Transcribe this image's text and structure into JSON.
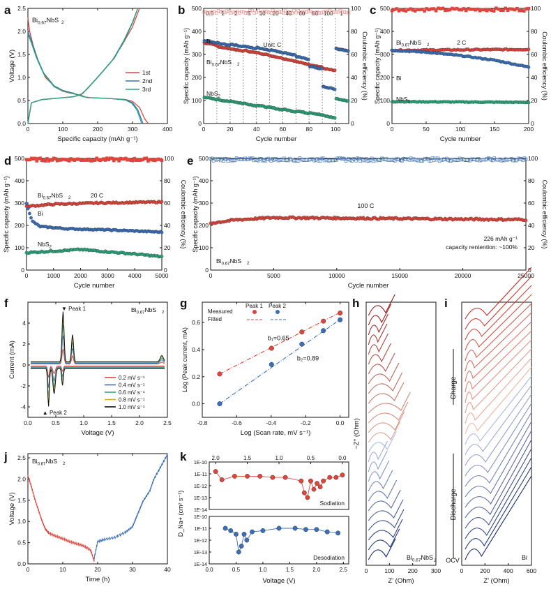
{
  "colors": {
    "red": "#e0453c",
    "blue": "#3a6fb7",
    "green": "#2aa57a",
    "black": "#111111",
    "yellow": "#d4b21f",
    "pink": "#e78d87"
  },
  "chart_data": [
    {
      "panel": "a",
      "type": "line",
      "annotation": "Bi0.67NbS2",
      "subscript": "0.67",
      "xlabel": "Specific capacity (mAh g⁻¹)",
      "ylabel": "Voltage (V)",
      "xlim": [
        0,
        400
      ],
      "ylim": [
        0,
        2.5
      ],
      "xticks": [
        0,
        100,
        200,
        300,
        400
      ],
      "yticks": [
        0,
        0.5,
        1.0,
        1.5,
        2.0,
        2.5
      ],
      "series": [
        {
          "name": "1st",
          "color": "red",
          "discharge": [
            [
              0,
              2.3
            ],
            [
              5,
              2.0
            ],
            [
              15,
              1.7
            ],
            [
              30,
              1.35
            ],
            [
              50,
              1.0
            ],
            [
              80,
              0.78
            ],
            [
              100,
              0.7
            ],
            [
              120,
              0.66
            ],
            [
              150,
              0.62
            ],
            [
              170,
              0.56
            ],
            [
              190,
              0.56
            ],
            [
              240,
              0.54
            ],
            [
              280,
              0.52
            ],
            [
              300,
              0.48
            ],
            [
              320,
              0.35
            ],
            [
              335,
              0.1
            ],
            [
              345,
              0
            ]
          ],
          "charge": [
            [
              0,
              0
            ],
            [
              10,
              0.45
            ],
            [
              40,
              0.52
            ],
            [
              100,
              0.56
            ],
            [
              130,
              0.58
            ],
            [
              150,
              0.62
            ],
            [
              170,
              0.75
            ],
            [
              200,
              1.0
            ],
            [
              240,
              1.35
            ],
            [
              270,
              1.7
            ],
            [
              300,
              2.1
            ],
            [
              320,
              2.5
            ]
          ]
        },
        {
          "name": "2nd",
          "color": "blue",
          "discharge": [
            [
              0,
              2.0
            ],
            [
              10,
              1.8
            ],
            [
              25,
              1.45
            ],
            [
              45,
              1.1
            ],
            [
              75,
              0.82
            ],
            [
              100,
              0.72
            ],
            [
              130,
              0.66
            ],
            [
              160,
              0.58
            ],
            [
              180,
              0.56
            ],
            [
              240,
              0.54
            ],
            [
              280,
              0.52
            ],
            [
              300,
              0.45
            ],
            [
              315,
              0.3
            ],
            [
              325,
              0.1
            ],
            [
              330,
              0
            ]
          ],
          "charge": [
            [
              0,
              0
            ],
            [
              10,
              0.45
            ],
            [
              40,
              0.52
            ],
            [
              100,
              0.56
            ],
            [
              130,
              0.58
            ],
            [
              155,
              0.64
            ],
            [
              175,
              0.8
            ],
            [
              205,
              1.05
            ],
            [
              245,
              1.4
            ],
            [
              275,
              1.8
            ],
            [
              300,
              2.2
            ],
            [
              315,
              2.5
            ]
          ]
        },
        {
          "name": "3rd",
          "color": "green",
          "discharge": [
            [
              0,
              1.95
            ],
            [
              10,
              1.75
            ],
            [
              25,
              1.42
            ],
            [
              45,
              1.08
            ],
            [
              75,
              0.8
            ],
            [
              100,
              0.71
            ],
            [
              130,
              0.65
            ],
            [
              160,
              0.58
            ],
            [
              180,
              0.56
            ],
            [
              240,
              0.54
            ],
            [
              280,
              0.51
            ],
            [
              298,
              0.44
            ],
            [
              312,
              0.3
            ],
            [
              322,
              0.1
            ],
            [
              326,
              0
            ]
          ],
          "charge": [
            [
              0,
              0
            ],
            [
              10,
              0.45
            ],
            [
              40,
              0.52
            ],
            [
              100,
              0.56
            ],
            [
              130,
              0.58
            ],
            [
              157,
              0.65
            ],
            [
              178,
              0.82
            ],
            [
              208,
              1.07
            ],
            [
              248,
              1.42
            ],
            [
              278,
              1.82
            ],
            [
              302,
              2.22
            ],
            [
              315,
              2.5
            ]
          ]
        }
      ]
    },
    {
      "panel": "b",
      "type": "scatter",
      "xlabel": "Cycle number",
      "ylabel": "Specific capacity (mAh g⁻¹)",
      "y2label": "Coulombic efficiency (%)",
      "xlim": [
        0,
        110
      ],
      "ylim": [
        0,
        500
      ],
      "y2lim": [
        0,
        100
      ],
      "xticks": [
        0,
        20,
        40,
        60,
        80,
        100
      ],
      "yticks": [
        0,
        100,
        200,
        300,
        400,
        500
      ],
      "y2ticks": [
        0,
        20,
        40,
        60,
        80,
        100
      ],
      "rates": [
        "0.5",
        "1",
        "2",
        "5",
        "10",
        "20",
        "40",
        "60",
        "80",
        "100",
        "1"
      ],
      "rate_unit": "Unit: C",
      "labels": [
        "Bi",
        "Bi0.67NbS2",
        "NbS2"
      ],
      "segments": {
        "Bi0_67NbS2": [
          350,
          335,
          325,
          318,
          308,
          295,
          282,
          268,
          256,
          240,
          325
        ],
        "Bi": [
          360,
          350,
          345,
          336,
          330,
          320,
          308,
          290,
          248,
          160,
          325
        ],
        "NbS2": [
          115,
          105,
          98,
          88,
          80,
          70,
          62,
          55,
          48,
          35,
          108
        ]
      },
      "ce_mean": 97
    },
    {
      "panel": "c",
      "type": "scatter",
      "xlabel": "Cycle number",
      "ylabel": "Specific capacity (mAh g⁻¹)",
      "y2label": "Coulombic efficiency (%)",
      "xlim": [
        0,
        200
      ],
      "ylim": [
        0,
        500
      ],
      "y2lim": [
        0,
        100
      ],
      "xticks": [
        0,
        50,
        100,
        150,
        200
      ],
      "yticks": [
        0,
        100,
        200,
        300,
        400,
        500
      ],
      "y2ticks": [
        0,
        20,
        40,
        60,
        80,
        100
      ],
      "rate": "2 C",
      "labels": [
        "Bi0.67NbS2",
        "Bi",
        "NbS2"
      ],
      "series": {
        "Bi0_67NbS2": [
          [
            0,
            318
          ],
          [
            200,
            322
          ]
        ],
        "Bi": [
          [
            0,
            318
          ],
          [
            50,
            310
          ],
          [
            100,
            295
          ],
          [
            150,
            275
          ],
          [
            200,
            245
          ]
        ],
        "NbS2": [
          [
            0,
            95
          ],
          [
            200,
            92
          ]
        ]
      },
      "ce_mean": 99
    },
    {
      "panel": "d",
      "type": "scatter",
      "xlabel": "Cycle number",
      "ylabel": "Specific capacity (mAh g⁻¹)",
      "y2label": "Coulombic efficiency (%)",
      "xlim": [
        0,
        5000
      ],
      "ylim": [
        0,
        500
      ],
      "y2lim": [
        0,
        100
      ],
      "xticks": [
        0,
        1000,
        2000,
        3000,
        4000,
        5000
      ],
      "yticks": [
        0,
        100,
        200,
        300,
        400,
        500
      ],
      "y2ticks": [
        0,
        20,
        40,
        60,
        80,
        100
      ],
      "rate": "20 C",
      "labels": [
        "Bi0.67NbS2",
        "Bi",
        "NbS2"
      ],
      "series": {
        "Bi0_67NbS2": [
          [
            0,
            285
          ],
          [
            1000,
            295
          ],
          [
            2500,
            300
          ],
          [
            5000,
            305
          ]
        ],
        "Bi": [
          [
            0,
            300
          ],
          [
            200,
            220
          ],
          [
            500,
            195
          ],
          [
            1500,
            185
          ],
          [
            3000,
            180
          ],
          [
            5000,
            170
          ]
        ],
        "NbS2": [
          [
            0,
            78
          ],
          [
            1000,
            85
          ],
          [
            2000,
            92
          ],
          [
            3000,
            82
          ],
          [
            4000,
            72
          ],
          [
            5000,
            60
          ]
        ]
      },
      "ce_mean": 99
    },
    {
      "panel": "e",
      "type": "scatter",
      "xlabel": "Cycle number",
      "ylabel": "Specific capacity (mAh g⁻¹)",
      "y2label": "Coulombic efficiency (%)",
      "xlim": [
        0,
        25000
      ],
      "ylim": [
        0,
        500
      ],
      "y2lim": [
        0,
        100
      ],
      "xticks": [
        0,
        5000,
        10000,
        15000,
        20000,
        25000
      ],
      "yticks": [
        0,
        100,
        200,
        300,
        400,
        500
      ],
      "y2ticks": [
        0,
        20,
        40,
        60,
        80,
        100
      ],
      "rate": "100 C",
      "sample": "Bi0.67NbS2",
      "note1": "226 mAh g⁻¹",
      "note2": "capacity rentention: ~100%",
      "series": {
        "Bi0_67NbS2": [
          [
            0,
            210
          ],
          [
            2000,
            225
          ],
          [
            5000,
            235
          ],
          [
            12000,
            232
          ],
          [
            20000,
            228
          ],
          [
            25000,
            226
          ]
        ]
      },
      "ce_mean": 99
    },
    {
      "panel": "f",
      "type": "line",
      "annotation": "Bi0.67NbS2",
      "xlabel": "Voltage (V)",
      "ylabel": "Current (mA)",
      "xlim": [
        0,
        2.5
      ],
      "ylim": [
        -5,
        6
      ],
      "xticks": [
        0,
        0.5,
        1.0,
        1.5,
        2.0,
        2.5
      ],
      "yticks": [
        -4,
        -2,
        0,
        2,
        4
      ],
      "peak1": "Peak 1",
      "peak2": "Peak 2",
      "legend": [
        {
          "label": "0.2 mV s⁻¹",
          "color": "red",
          "scale": 0.3
        },
        {
          "label": "0.4 mV s⁻¹",
          "color": "blue",
          "scale": 0.55
        },
        {
          "label": "0.6 mV s⁻¹",
          "color": "green",
          "scale": 0.75
        },
        {
          "label": "0.8 mV s⁻¹",
          "color": "yellow",
          "scale": 0.9
        },
        {
          "label": "1.0 mV s⁻¹",
          "color": "black",
          "scale": 1.0
        }
      ]
    },
    {
      "panel": "g",
      "type": "scatter",
      "xlabel": "Log (Scan rate, mV s⁻¹)",
      "ylabel": "Log (Peak current, mA)",
      "xlim": [
        -0.8,
        0.05
      ],
      "ylim": [
        -0.1,
        0.75
      ],
      "xticks": [
        -0.8,
        -0.6,
        -0.4,
        -0.2,
        0.0
      ],
      "yticks": [
        0.0,
        0.2,
        0.4,
        0.6
      ],
      "legend_measured": "Measured",
      "legend_fitted": "Fitted",
      "legend_p1": "Peak 1",
      "legend_p2": "Peak 2",
      "b1": "b₁=0.65",
      "b2": "b₂=0.89",
      "x": [
        -0.699,
        -0.398,
        -0.222,
        -0.097,
        0.0
      ],
      "peak1": [
        0.22,
        0.41,
        0.53,
        0.61,
        0.67
      ],
      "peak2": [
        0.0,
        0.29,
        0.44,
        0.54,
        0.62
      ]
    },
    {
      "panel": "h",
      "type": "line",
      "ylabel": "−Z'' (Ohm)",
      "xlabel": "Z' (Ohm)",
      "xlim": [
        0,
        300
      ],
      "xticks": [
        0,
        100,
        200,
        300
      ],
      "label": "Bi0.67NbS2",
      "n_curves": 26
    },
    {
      "panel": "i",
      "type": "line",
      "xlabel": "Z' (Ohm)",
      "xlim": [
        0,
        600
      ],
      "xticks": [
        0,
        200,
        400,
        600
      ],
      "label": "Bi",
      "charge": "Charge",
      "discharge": "Discharge",
      "ocv": "OCV",
      "n_curves": 24
    },
    {
      "panel": "j",
      "type": "line",
      "annotation": "Bi0.67NbS2",
      "xlabel": "Time (h)",
      "ylabel": "Voltage (V)",
      "xlim": [
        0,
        40
      ],
      "ylim": [
        0,
        2.6
      ],
      "xticks": [
        0,
        10,
        20,
        30,
        40
      ],
      "yticks": [
        0.0,
        0.5,
        1.0,
        1.5,
        2.0,
        2.5
      ],
      "discharge": [
        [
          0,
          2.1
        ],
        [
          1,
          1.85
        ],
        [
          2,
          1.55
        ],
        [
          3,
          1.3
        ],
        [
          4,
          1.05
        ],
        [
          5,
          0.85
        ],
        [
          6,
          0.75
        ],
        [
          8,
          0.68
        ],
        [
          10,
          0.62
        ],
        [
          12,
          0.55
        ],
        [
          14,
          0.5
        ],
        [
          16,
          0.45
        ],
        [
          18,
          0.35
        ],
        [
          19,
          0.1
        ]
      ],
      "charge": [
        [
          19,
          0.1
        ],
        [
          20,
          0.5
        ],
        [
          22,
          0.55
        ],
        [
          25,
          0.6
        ],
        [
          28,
          0.72
        ],
        [
          30,
          0.85
        ],
        [
          31,
          1.05
        ],
        [
          32,
          1.25
        ],
        [
          33,
          1.45
        ],
        [
          35,
          1.7
        ],
        [
          36,
          1.95
        ],
        [
          38,
          2.25
        ],
        [
          40,
          2.55
        ]
      ]
    },
    {
      "panel": "k",
      "type": "scatter",
      "xlabel": "Voltage (V)",
      "ylabel": "D_Na+ (cm² s⁻¹)",
      "yticks": [
        "1E-10",
        "1E-11",
        "1E-12",
        "1E-13",
        "1E-14"
      ],
      "top": {
        "label": "Sodiation",
        "xlim": [
          2.1,
          -0.1
        ],
        "xticks": [
          2.0,
          1.5,
          1.0,
          0.5,
          0.0
        ],
        "x": [
          2.0,
          1.9,
          1.7,
          1.5,
          1.3,
          1.1,
          0.9,
          0.65,
          0.6,
          0.55,
          0.5,
          0.45,
          0.4,
          0.35,
          0.3,
          0.2,
          0.1,
          0.0
        ],
        "logD": [
          -10.8,
          -11.5,
          -11.2,
          -11.2,
          -11.2,
          -11.3,
          -11.3,
          -11.6,
          -12.6,
          -13.0,
          -11.6,
          -12.3,
          -11.8,
          -12.1,
          -11.6,
          -11.3,
          -11.3,
          -11.1
        ]
      },
      "bottom": {
        "label": "Desodiation",
        "xlim": [
          0,
          2.6
        ],
        "xticks": [
          0.0,
          0.5,
          1.0,
          1.5,
          2.0,
          2.5
        ],
        "x": [
          0.3,
          0.4,
          0.5,
          0.55,
          0.6,
          0.65,
          0.7,
          0.8,
          1.0,
          1.3,
          1.6,
          1.8,
          2.0,
          2.2,
          2.4
        ],
        "logD": [
          -11.0,
          -11.2,
          -11.5,
          -13.0,
          -12.5,
          -11.5,
          -12.0,
          -11.3,
          -11.2,
          -11.0,
          -11.0,
          -11.1,
          -11.1,
          -11.3,
          -11.4
        ]
      }
    }
  ]
}
